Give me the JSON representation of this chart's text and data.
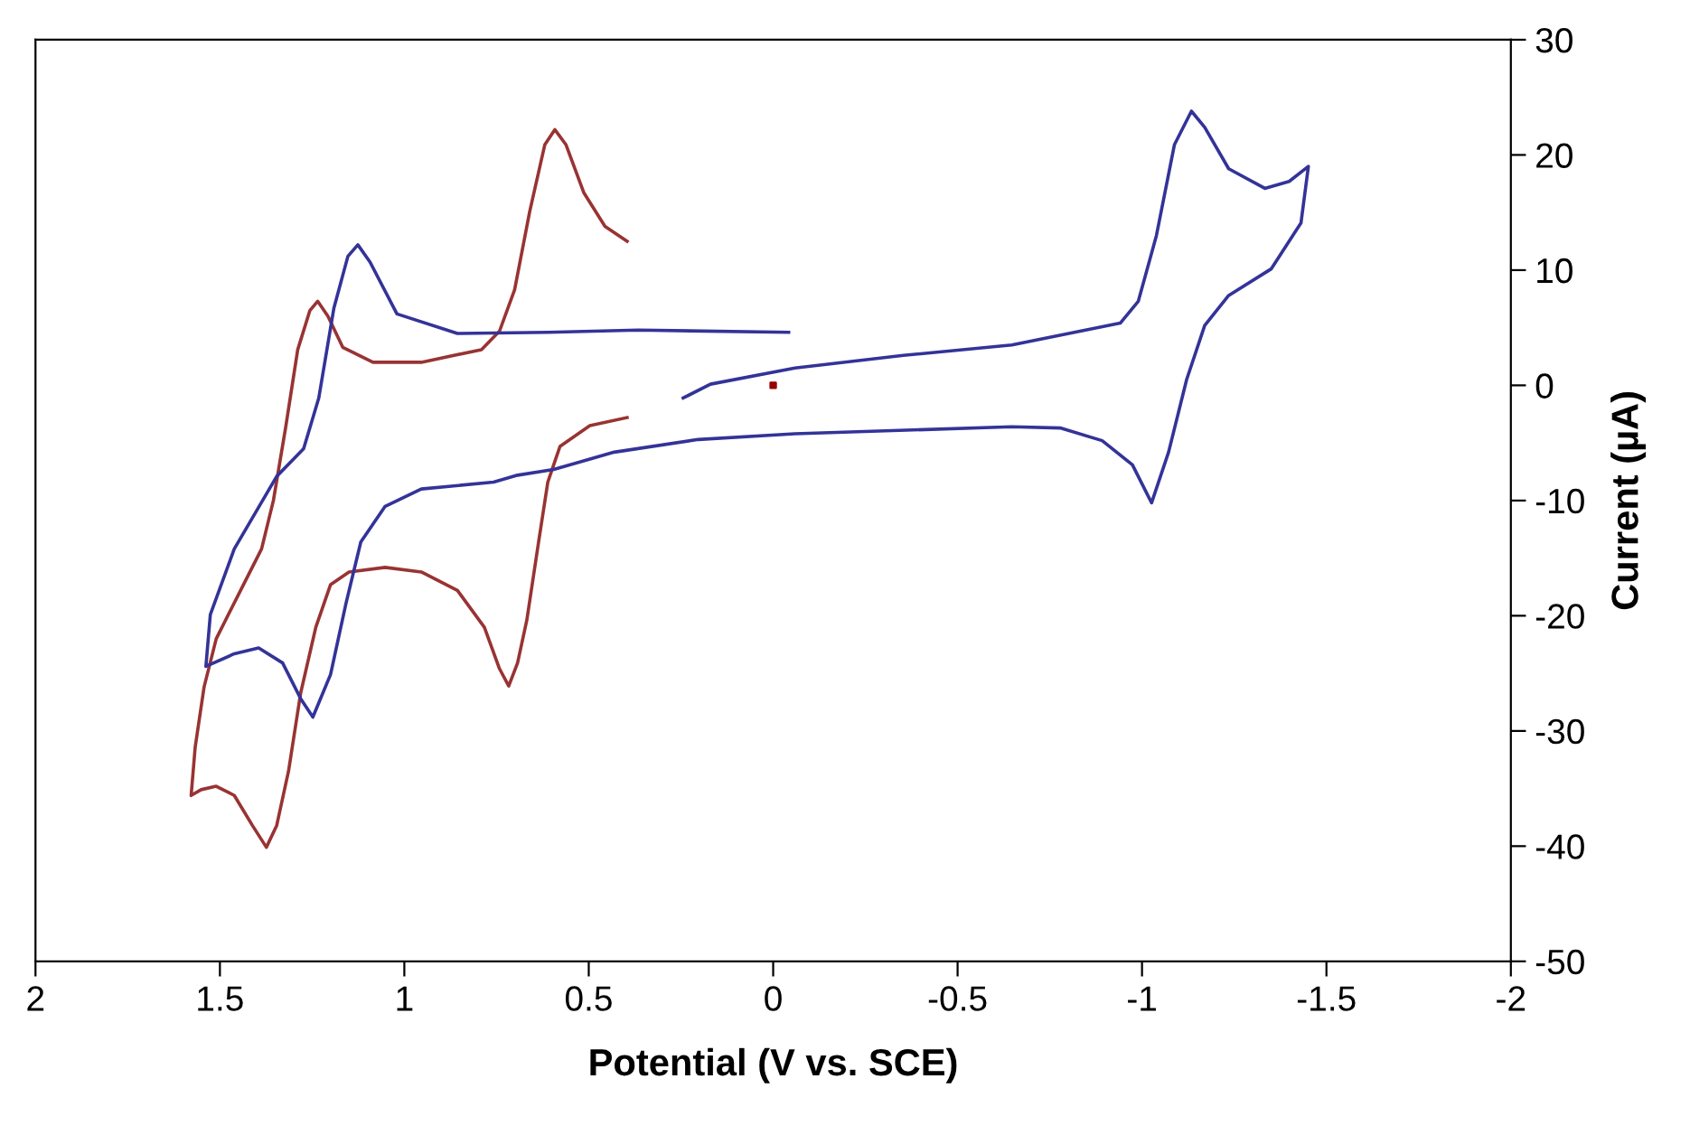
{
  "chart_data": {
    "type": "line",
    "xlabel": "Potential (V vs. SCE)",
    "ylabel": "Current (µA)",
    "xlim": [
      2,
      -2
    ],
    "xticks": [
      2,
      1.5,
      1,
      0.5,
      0,
      -0.5,
      -1,
      -1.5,
      -2
    ],
    "ylim": [
      -50,
      30
    ],
    "yticks": [
      -50,
      -40,
      -30,
      -20,
      -10,
      0,
      10,
      20,
      30
    ],
    "grid": false,
    "legend": false,
    "marker": "none",
    "line_style": "solid",
    "series": [
      {
        "color": "#993333",
        "x": [
          0.396,
          0.497,
          0.578,
          0.611,
          0.636,
          0.668,
          0.693,
          0.717,
          0.742,
          0.783,
          0.856,
          0.954,
          1.052,
          1.15,
          1.2,
          1.24,
          1.281,
          1.314,
          1.346,
          1.374,
          1.412,
          1.461,
          1.51,
          1.551,
          1.578,
          1.567,
          1.543,
          1.51,
          1.444,
          1.387,
          1.355,
          1.322,
          1.289,
          1.256,
          1.235,
          1.207,
          1.167,
          1.085,
          0.954,
          0.791,
          0.742,
          0.701,
          0.66,
          0.619,
          0.592,
          0.562,
          0.513,
          0.456,
          0.396
        ],
        "values": [
          -2.8,
          -3.5,
          -5.3,
          -8.4,
          -13.6,
          -20.4,
          -24.1,
          -26.1,
          -24.6,
          -21.0,
          -17.8,
          -16.2,
          -15.8,
          -16.2,
          -17.3,
          -21.0,
          -26.7,
          -33.5,
          -38.2,
          -40.1,
          -38.2,
          -35.6,
          -34.8,
          -35.1,
          -35.6,
          -31.4,
          -26.2,
          -22.0,
          -17.8,
          -14.2,
          -10.0,
          -3.7,
          3.1,
          6.5,
          7.3,
          6.0,
          3.3,
          2.0,
          2.0,
          3.1,
          4.7,
          8.3,
          15.1,
          20.9,
          22.2,
          20.9,
          16.7,
          13.8,
          12.5
        ]
      },
      {
        "color": "#333399",
        "x": [
          0.244,
          0.17,
          -0.059,
          -0.353,
          -0.647,
          -0.941,
          -0.99,
          -1.039,
          -1.088,
          -1.134,
          -1.17,
          -1.235,
          -1.333,
          -1.399,
          -1.451,
          -1.431,
          -1.35,
          -1.235,
          -1.17,
          -1.121,
          -1.072,
          -1.026,
          -0.974,
          -0.892,
          -0.778,
          -0.647,
          -0.059,
          0.203,
          0.431,
          0.595,
          0.693,
          0.758,
          0.954,
          1.052,
          1.118,
          1.158,
          1.2,
          1.248,
          1.281,
          1.33,
          1.395,
          1.461,
          1.538,
          1.526,
          1.461,
          1.346,
          1.273,
          1.232,
          1.191,
          1.153,
          1.126,
          1.093,
          1.02,
          0.856,
          0.611,
          0.366,
          -0.042
        ],
        "values": [
          -1.1,
          0.1,
          1.5,
          2.6,
          3.5,
          5.4,
          7.3,
          13.0,
          20.9,
          23.8,
          22.4,
          18.8,
          17.1,
          17.7,
          19.0,
          14.1,
          10.1,
          7.8,
          5.2,
          0.5,
          -5.8,
          -10.2,
          -6.9,
          -4.8,
          -3.7,
          -3.6,
          -4.2,
          -4.7,
          -5.8,
          -7.3,
          -7.8,
          -8.4,
          -9.0,
          -10.5,
          -13.6,
          -18.9,
          -25.1,
          -28.8,
          -27.2,
          -24.1,
          -22.8,
          -23.3,
          -24.4,
          -19.9,
          -14.2,
          -7.9,
          -5.5,
          -1.1,
          6.7,
          11.2,
          12.2,
          10.7,
          6.2,
          4.5,
          4.6,
          4.8,
          4.6
        ]
      },
      {
        "type": "scatter",
        "marker": "square",
        "color": "#990000",
        "x": [
          0
        ],
        "values": [
          0
        ]
      }
    ]
  }
}
